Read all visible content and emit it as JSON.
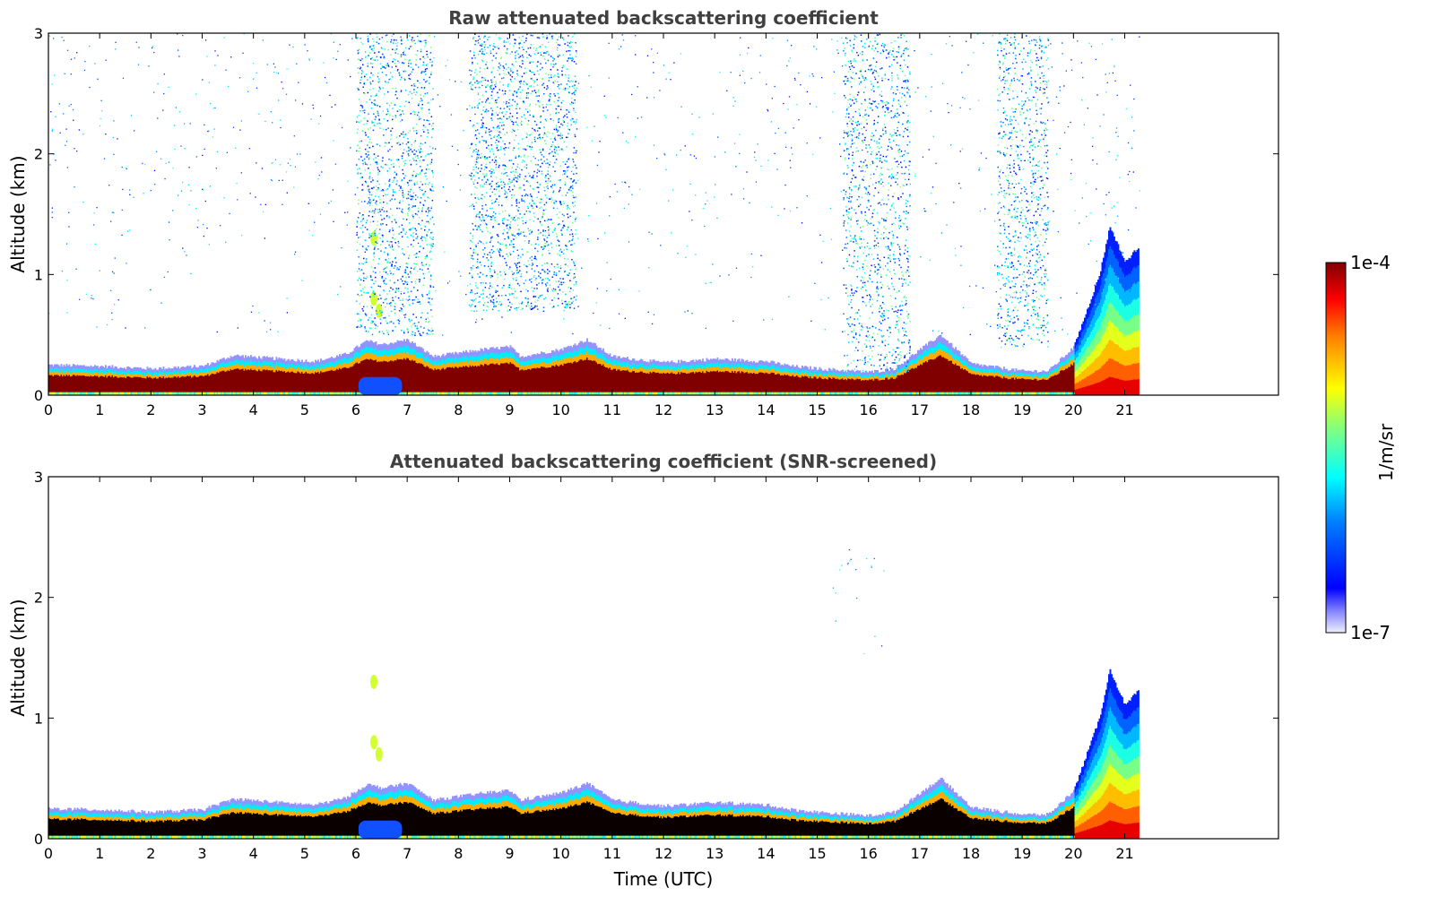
{
  "chart_data": [
    {
      "type": "heatmap",
      "title": "Raw attenuated backscattering coefficient",
      "xlabel": "",
      "ylabel": "Altitude (km)",
      "xlim": [
        0,
        24
      ],
      "ylim": [
        0,
        3
      ],
      "x_ticks": [
        "0",
        "1",
        "2",
        "3",
        "4",
        "5",
        "6",
        "7",
        "8",
        "9",
        "10",
        "11",
        "12",
        "13",
        "14",
        "15",
        "16",
        "17",
        "18",
        "19",
        "20",
        "21"
      ],
      "y_ticks": [
        "0",
        "1",
        "2",
        "3"
      ],
      "data_end_time": 21.3,
      "boundary_layer_top_km": [
        [
          0,
          0.25
        ],
        [
          1,
          0.24
        ],
        [
          2,
          0.22
        ],
        [
          3,
          0.24
        ],
        [
          3.6,
          0.33
        ],
        [
          4.5,
          0.3
        ],
        [
          5.2,
          0.28
        ],
        [
          5.8,
          0.34
        ],
        [
          6.2,
          0.45
        ],
        [
          6.5,
          0.42
        ],
        [
          7,
          0.46
        ],
        [
          7.5,
          0.32
        ],
        [
          8.5,
          0.38
        ],
        [
          9,
          0.4
        ],
        [
          9.2,
          0.32
        ],
        [
          10,
          0.38
        ],
        [
          10.5,
          0.46
        ],
        [
          11,
          0.32
        ],
        [
          12,
          0.27
        ],
        [
          13,
          0.3
        ],
        [
          14,
          0.28
        ],
        [
          14.5,
          0.24
        ],
        [
          15,
          0.22
        ],
        [
          16,
          0.19
        ],
        [
          16.5,
          0.22
        ],
        [
          17,
          0.38
        ],
        [
          17.4,
          0.5
        ],
        [
          18,
          0.26
        ],
        [
          19,
          0.2
        ],
        [
          19.5,
          0.2
        ],
        [
          20,
          0.4
        ],
        [
          20.5,
          1.0
        ],
        [
          20.7,
          1.4
        ],
        [
          21,
          1.1
        ],
        [
          21.3,
          1.25
        ]
      ],
      "features": [
        {
          "type": "low signal region",
          "time": [
            6.0,
            6.9
          ],
          "altitude_km": [
            0,
            0.15
          ]
        },
        {
          "type": "elevated layer",
          "time": [
            6.2,
            6.5
          ],
          "altitude_km": [
            0.6,
            1.35
          ]
        },
        {
          "type": "noise curtain",
          "time": [
            15.5,
            16.8
          ],
          "altitude_km": [
            0.2,
            3.0
          ]
        },
        {
          "type": "noise curtain",
          "time": [
            18.5,
            19.5
          ],
          "altitude_km": [
            0.4,
            3.0
          ]
        },
        {
          "type": "noise curtain",
          "time": [
            6.0,
            7.5
          ],
          "altitude_km": [
            0.5,
            3.0
          ]
        },
        {
          "type": "noise curtain",
          "time": [
            8.2,
            10.3
          ],
          "altitude_km": [
            0.7,
            3.0
          ]
        }
      ]
    },
    {
      "type": "heatmap",
      "title": "Attenuated backscattering coefficient (SNR-screened)",
      "xlabel": "Time (UTC)",
      "ylabel": "Altitude (km)",
      "xlim": [
        0,
        24
      ],
      "ylim": [
        0,
        3
      ],
      "x_ticks": [
        "0",
        "1",
        "2",
        "3",
        "4",
        "5",
        "6",
        "7",
        "8",
        "9",
        "10",
        "11",
        "12",
        "13",
        "14",
        "15",
        "16",
        "17",
        "18",
        "19",
        "20",
        "21"
      ],
      "y_ticks": [
        "0",
        "1",
        "2",
        "3"
      ],
      "data_end_time": 21.3
    }
  ],
  "colorbar": {
    "label": "1/m/sr",
    "max_label": "1e-4",
    "min_label": "1e-7",
    "scale": "log",
    "colormap": "jet"
  }
}
